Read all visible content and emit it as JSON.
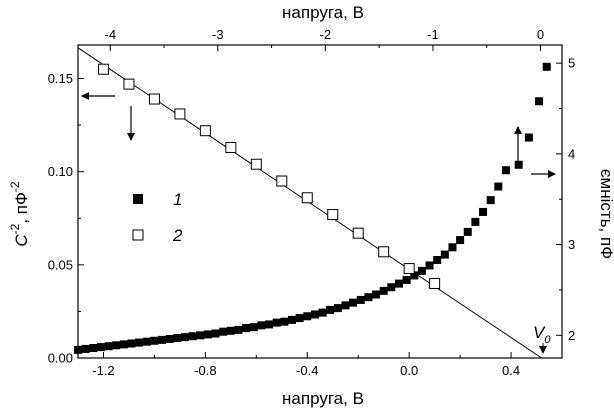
{
  "chart_data": {
    "type": "scatter",
    "bottom_axis": {
      "label": "напруга, В",
      "range": [
        -1.3,
        0.6
      ],
      "ticks": [
        -1.2,
        -0.8,
        -0.4,
        0.0,
        0.4
      ],
      "tick_labels": [
        "-1.2",
        "-0.8",
        "-0.4",
        "0.0",
        "0.4"
      ]
    },
    "top_axis": {
      "label": "напруга, В",
      "range": [
        -4.3,
        0.2
      ],
      "ticks": [
        -4,
        -3,
        -2,
        -1,
        0
      ],
      "tick_labels": [
        "-4",
        "-3",
        "-2",
        "-1",
        "0"
      ]
    },
    "left_axis": {
      "label_main": "C",
      "label_sup": "-2",
      "label_mid": ", пФ",
      "label_sup2": "-2",
      "range": [
        0,
        0.168
      ],
      "ticks": [
        0.0,
        0.05,
        0.1,
        0.15
      ],
      "tick_labels": [
        "0.00",
        "0.05",
        "0.10",
        "0.15"
      ]
    },
    "right_axis": {
      "label": "ємність, пФ",
      "range": [
        1.75,
        5.2
      ],
      "ticks": [
        2,
        3,
        4,
        5
      ],
      "tick_labels": [
        "2",
        "3",
        "4",
        "5"
      ]
    },
    "series": [
      {
        "name": "1",
        "marker": "filled-square",
        "axes": "bottom-right",
        "x": [
          -1.3,
          -1.27,
          -1.24,
          -1.21,
          -1.18,
          -1.15,
          -1.12,
          -1.09,
          -1.06,
          -1.03,
          -1.0,
          -0.97,
          -0.94,
          -0.91,
          -0.88,
          -0.85,
          -0.82,
          -0.79,
          -0.76,
          -0.73,
          -0.7,
          -0.67,
          -0.64,
          -0.61,
          -0.58,
          -0.55,
          -0.52,
          -0.49,
          -0.46,
          -0.43,
          -0.4,
          -0.37,
          -0.34,
          -0.31,
          -0.28,
          -0.25,
          -0.22,
          -0.19,
          -0.16,
          -0.13,
          -0.1,
          -0.07,
          -0.04,
          -0.01,
          0.02,
          0.05,
          0.08,
          0.11,
          0.14,
          0.17,
          0.2,
          0.23,
          0.26,
          0.29,
          0.32,
          0.35,
          0.38,
          0.43,
          0.47,
          0.51,
          0.54
        ],
        "y": [
          1.84,
          1.85,
          1.86,
          1.87,
          1.88,
          1.89,
          1.9,
          1.91,
          1.92,
          1.93,
          1.94,
          1.95,
          1.96,
          1.97,
          1.98,
          1.99,
          2.0,
          2.01,
          2.02,
          2.04,
          2.05,
          2.06,
          2.08,
          2.09,
          2.11,
          2.12,
          2.14,
          2.15,
          2.17,
          2.19,
          2.21,
          2.23,
          2.25,
          2.28,
          2.3,
          2.33,
          2.36,
          2.39,
          2.42,
          2.45,
          2.49,
          2.53,
          2.57,
          2.61,
          2.66,
          2.71,
          2.77,
          2.83,
          2.89,
          2.97,
          3.05,
          3.14,
          3.25,
          3.36,
          3.49,
          3.64,
          3.82,
          3.88,
          4.18,
          4.58,
          4.96
        ]
      },
      {
        "name": "2",
        "marker": "open-square",
        "axes": "bottom-left",
        "x": [
          -1.2,
          -1.1,
          -1.0,
          -0.9,
          -0.8,
          -0.7,
          -0.6,
          -0.5,
          -0.4,
          -0.3,
          -0.2,
          -0.1,
          0.0,
          0.1
        ],
        "y": [
          0.155,
          0.147,
          0.139,
          0.131,
          0.122,
          0.113,
          0.104,
          0.095,
          0.086,
          0.077,
          0.067,
          0.057,
          0.048,
          0.04
        ]
      }
    ],
    "fit_line": {
      "axes": "bottom-left",
      "x": [
        -1.3,
        0.52
      ],
      "y": [
        0.1665,
        0.0
      ]
    },
    "legend": [
      {
        "label": "1",
        "marker": "filled-square"
      },
      {
        "label": "2",
        "marker": "open-square"
      }
    ],
    "annotation": {
      "text": "V",
      "subscript": "0",
      "x": 0.52
    },
    "grid": false
  }
}
